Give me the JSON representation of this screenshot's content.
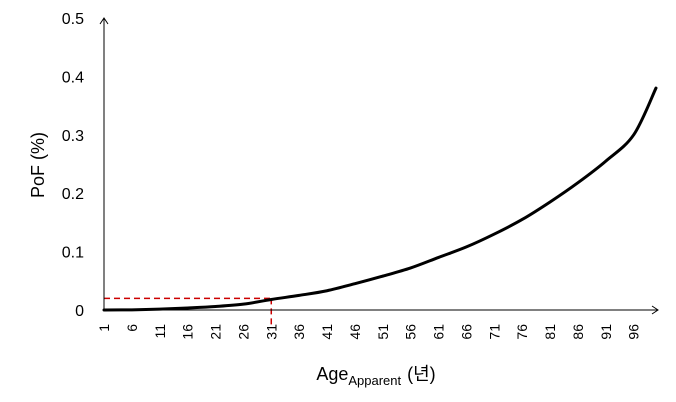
{
  "chart_data": {
    "type": "line",
    "title": "",
    "xlabel": "Age",
    "xlabel_subscript": "Apparent",
    "xlabel_unit": "(년)",
    "ylabel": "PoF (%)",
    "ylim": [
      0,
      0.5
    ],
    "xlim": [
      1,
      100
    ],
    "y_ticks": [
      "0",
      "0.1",
      "0.2",
      "0.3",
      "0.4",
      "0.5"
    ],
    "x_ticks": [
      "1",
      "6",
      "11",
      "16",
      "21",
      "26",
      "31",
      "36",
      "41",
      "46",
      "51",
      "56",
      "61",
      "66",
      "71",
      "76",
      "81",
      "86",
      "91",
      "96"
    ],
    "grid": false,
    "legend": "none",
    "series": [
      {
        "x": [
          1,
          6,
          11,
          16,
          21,
          26,
          31,
          36,
          41,
          46,
          51,
          56,
          61,
          66,
          71,
          76,
          81,
          86,
          91,
          96,
          100
        ],
        "y": [
          0,
          0.0003,
          0.0015,
          0.0035,
          0.006,
          0.01,
          0.018,
          0.025,
          0.033,
          0.045,
          0.058,
          0.072,
          0.09,
          0.108,
          0.13,
          0.155,
          0.185,
          0.218,
          0.255,
          0.3,
          0.38
        ],
        "color": "#000000"
      }
    ],
    "reference_point": {
      "x": 31,
      "y": 0.02,
      "color": "#cc0000"
    }
  }
}
